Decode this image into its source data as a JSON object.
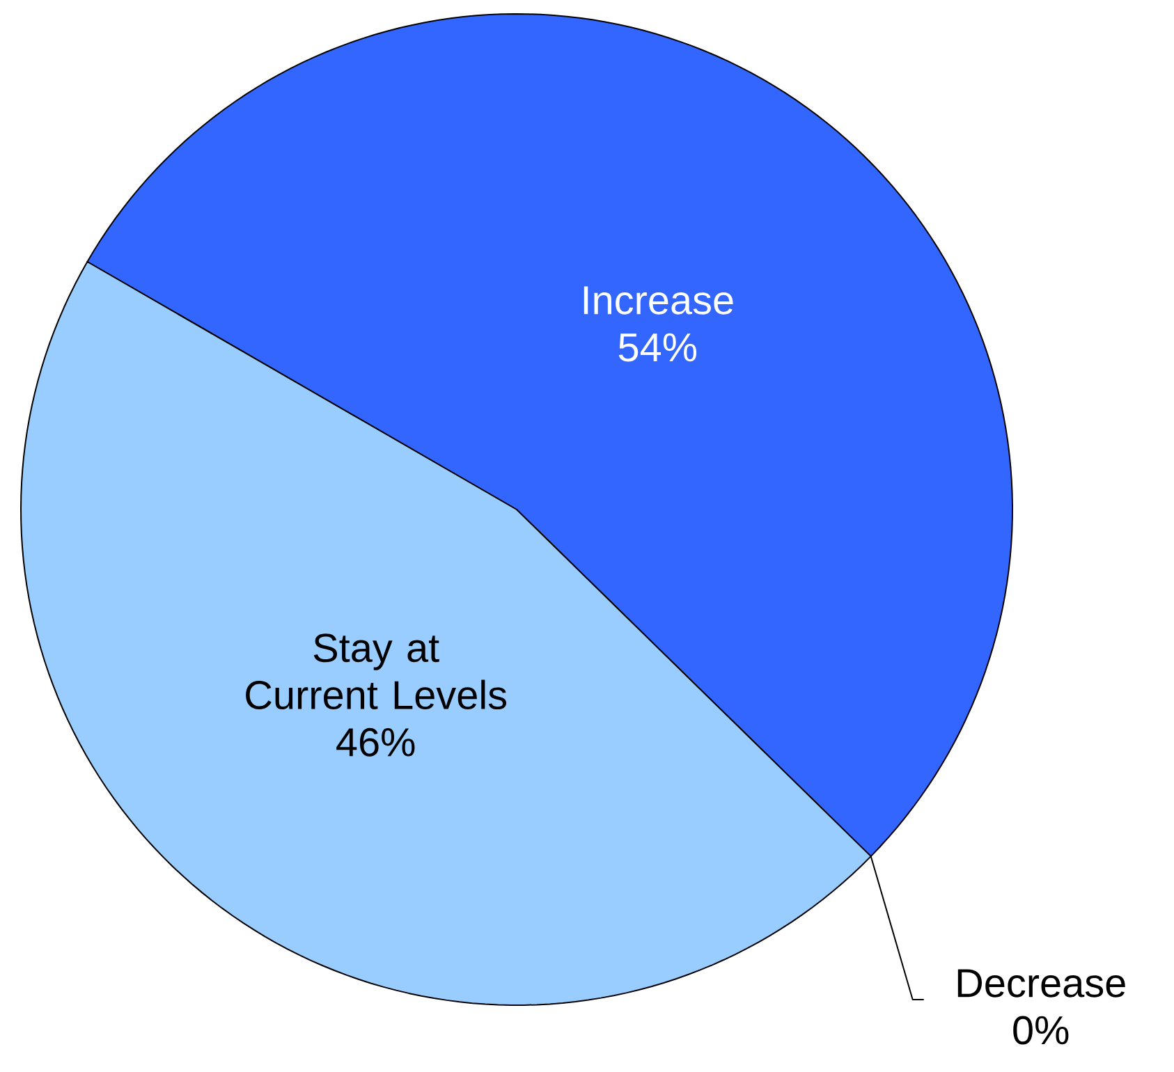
{
  "chart_data": {
    "type": "pie",
    "categories": [
      "Increase",
      "Decrease",
      "Stay at Current Levels"
    ],
    "values": [
      54,
      0,
      46
    ],
    "value_labels": [
      "54%",
      "0%",
      "46%"
    ],
    "colors": [
      "#3366ff",
      "#003399",
      "#99ccff"
    ]
  }
}
